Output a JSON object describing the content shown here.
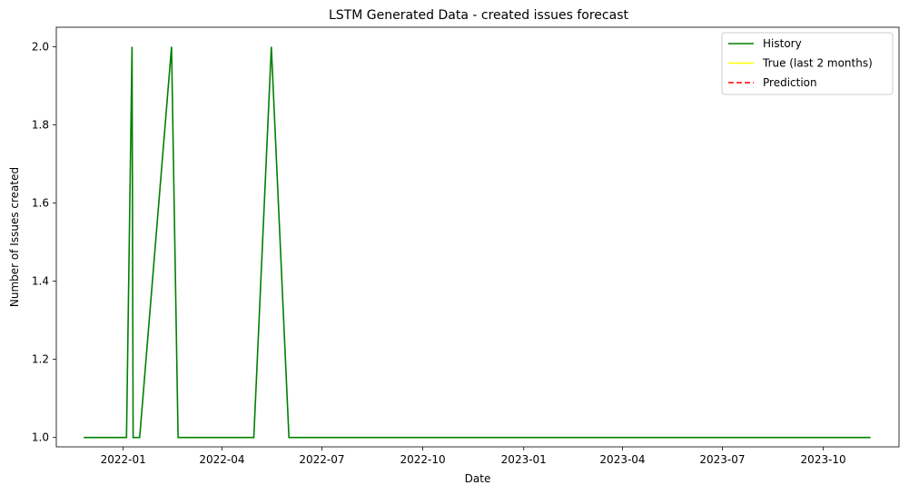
{
  "chart_data": {
    "type": "line",
    "title": "LSTM Generated Data - created issues forecast",
    "xlabel": "Date",
    "ylabel": "Number of Issues created",
    "xlim": [
      "2021-11-01",
      "2023-12-09"
    ],
    "ylim": [
      0.976,
      2.05
    ],
    "x_ticks": [
      "2022-01",
      "2022-04",
      "2022-07",
      "2022-10",
      "2023-01",
      "2023-04",
      "2023-07",
      "2023-10"
    ],
    "y_ticks": [
      "1.0",
      "1.2",
      "1.4",
      "1.6",
      "1.8",
      "2.0"
    ],
    "grid": false,
    "legend_position": "top-right",
    "series": [
      {
        "name": "History",
        "color": "#008000",
        "style": "solid",
        "x": [
          "2021-11-26",
          "2022-01-04",
          "2022-01-09",
          "2022-01-10",
          "2022-01-16",
          "2022-02-14",
          "2022-02-20",
          "2022-04-30",
          "2022-05-16",
          "2022-06-01",
          "2023-11-13"
        ],
        "y": [
          1,
          1,
          2,
          1,
          1,
          2,
          1,
          1,
          2,
          1,
          1
        ]
      },
      {
        "name": "True (last 2 months)",
        "color": "#ffff00",
        "style": "solid",
        "x": [],
        "y": []
      },
      {
        "name": "Prediction",
        "color": "#ff0000",
        "style": "dashed",
        "x": [],
        "y": []
      }
    ]
  }
}
